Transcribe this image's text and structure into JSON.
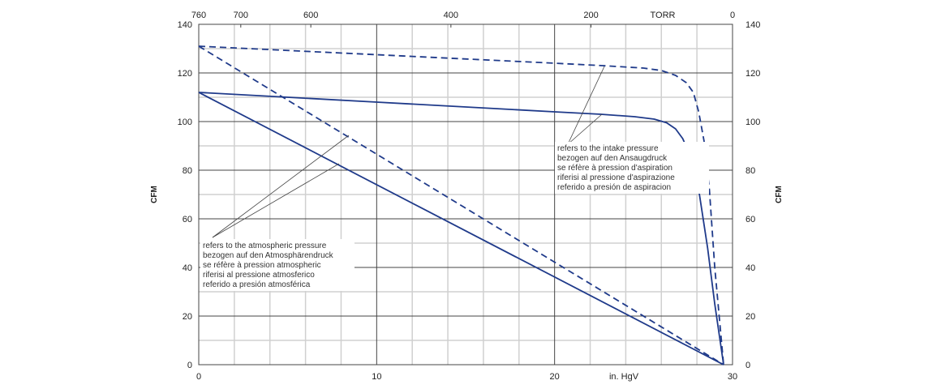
{
  "chart_data": {
    "type": "line",
    "xlabel": "in. HgV",
    "ylabel": "CFM",
    "top_axis_label": "TORR",
    "xlim": [
      0,
      30
    ],
    "ylim": [
      0,
      140
    ],
    "x_ticks": [
      0,
      10,
      20,
      30
    ],
    "y_ticks": [
      0,
      20,
      40,
      60,
      80,
      100,
      120,
      140
    ],
    "top_ticks": [
      760,
      700,
      600,
      400,
      200,
      0
    ],
    "grid": true,
    "series": [
      {
        "name": "intake pressure (dashed)",
        "style": "dashed",
        "x": [
          0,
          10,
          20,
          22.7,
          25,
          26,
          26.8,
          27.4,
          27.8,
          28.1,
          28.4,
          28.7,
          29.0,
          29.5
        ],
        "y": [
          131,
          127.5,
          124,
          123,
          122,
          121,
          119,
          116,
          112,
          104,
          92,
          72,
          40,
          0
        ]
      },
      {
        "name": "intake pressure (solid)",
        "style": "solid",
        "x": [
          0,
          10,
          20,
          22.6,
          24.5,
          25.6,
          26.3,
          26.8,
          27.2,
          27.5,
          27.7,
          28.1,
          28.6,
          29.0,
          29.5
        ],
        "y": [
          112,
          108,
          104,
          103,
          102,
          101,
          99.5,
          97,
          93,
          88,
          82,
          72,
          48,
          25,
          0
        ]
      },
      {
        "name": "atmospheric pressure (dashed)",
        "style": "dashed",
        "x": [
          0,
          29.5
        ],
        "y": [
          131,
          0
        ]
      },
      {
        "name": "atmospheric pressure (solid)",
        "style": "solid",
        "x": [
          0,
          29.5
        ],
        "y": [
          112,
          0
        ]
      }
    ],
    "line_color": "#1f3a8a",
    "annotations": {
      "intake": [
        "refers to the intake pressure",
        "bezogen auf den Ansaugdruck",
        "se réfère à pression d'aspiration",
        "riferisi al pressione d'aspirazione",
        "referido a presión de aspiracion"
      ],
      "atmospheric": [
        "refers to the atmospheric pressure",
        "bezogen auf den Atmosphärendruck",
        "se réfère à pression atmospheric",
        "riferisi al pressione atmosferico",
        "referido a presión atmosférica"
      ]
    }
  }
}
